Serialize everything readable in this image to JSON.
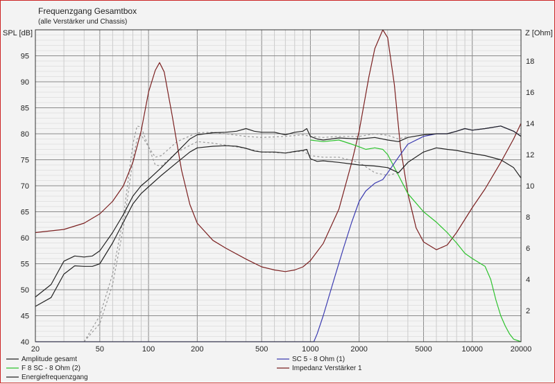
{
  "window": {
    "title": "Frequenzgang Gesamtbox"
  },
  "chart_data": {
    "type": "line",
    "title": "Frequenzgang Gesamtbox",
    "subtitle": "(alle Verstärker und Chassis)",
    "x_scale": "log",
    "xlim": [
      20,
      20000
    ],
    "x_ticks": [
      20,
      50,
      100,
      200,
      500,
      1000,
      2000,
      5000,
      10000,
      20000
    ],
    "y_left": {
      "label": "SPL [dB]",
      "ylim": [
        40,
        100
      ],
      "ticks": [
        40,
        45,
        50,
        55,
        60,
        65,
        70,
        75,
        80,
        85,
        90,
        95
      ]
    },
    "y_right": {
      "label": "Z [Ohm]",
      "ylim": [
        0,
        20
      ],
      "ticks": [
        2,
        4,
        6,
        8,
        10,
        12,
        14,
        16,
        18
      ]
    },
    "grid": true,
    "legend_position": "bottom",
    "legend": [
      {
        "label": "Amplitude gesamt",
        "color": "#222222"
      },
      {
        "label": "SC 5 - 8 Ohm (1)",
        "color": "#3a3ab0"
      },
      {
        "label": "F 8 SC - 8 Ohm (2)",
        "color": "#2cc22c"
      },
      {
        "label": "Impedanz Verstärker 1",
        "color": "#7a1f1f"
      },
      {
        "label": "Energiefrequenzgang",
        "color": "#222222"
      }
    ],
    "series": [
      {
        "name": "Amplitude gesamt",
        "axis": "left",
        "color": "#222222",
        "dash": "",
        "points": [
          [
            20,
            48.6
          ],
          [
            25,
            51
          ],
          [
            30,
            55.5
          ],
          [
            35,
            56.5
          ],
          [
            40,
            56.3
          ],
          [
            45,
            56.5
          ],
          [
            50,
            57.5
          ],
          [
            60,
            61
          ],
          [
            70,
            64.5
          ],
          [
            80,
            68
          ],
          [
            90,
            70
          ],
          [
            100,
            71.2
          ],
          [
            120,
            73.5
          ],
          [
            150,
            76.5
          ],
          [
            180,
            79
          ],
          [
            200,
            79.8
          ],
          [
            250,
            80.2
          ],
          [
            300,
            80.3
          ],
          [
            350,
            80.5
          ],
          [
            400,
            81
          ],
          [
            450,
            80.5
          ],
          [
            500,
            80.3
          ],
          [
            600,
            80.3
          ],
          [
            700,
            79.8
          ],
          [
            800,
            80.3
          ],
          [
            900,
            80.5
          ],
          [
            950,
            81
          ],
          [
            1000,
            79.5
          ],
          [
            1100,
            79
          ],
          [
            1200,
            78.8
          ],
          [
            1500,
            79.2
          ],
          [
            2000,
            79
          ],
          [
            2500,
            79.3
          ],
          [
            3000,
            78.8
          ],
          [
            3500,
            78.5
          ],
          [
            4000,
            79.3
          ],
          [
            5000,
            79.8
          ],
          [
            6000,
            80
          ],
          [
            7000,
            80
          ],
          [
            8000,
            80.5
          ],
          [
            9000,
            81
          ],
          [
            10000,
            80.7
          ],
          [
            12000,
            81
          ],
          [
            15000,
            81.5
          ],
          [
            18000,
            80.5
          ],
          [
            20000,
            79.5
          ]
        ]
      },
      {
        "name": "Energiefrequenzgang",
        "axis": "left",
        "color": "#222222",
        "dash": "",
        "points": [
          [
            20,
            46.8
          ],
          [
            25,
            48.5
          ],
          [
            30,
            53
          ],
          [
            35,
            54.6
          ],
          [
            40,
            54.5
          ],
          [
            45,
            54.5
          ],
          [
            50,
            55
          ],
          [
            60,
            59
          ],
          [
            70,
            63
          ],
          [
            80,
            66.5
          ],
          [
            90,
            68.5
          ],
          [
            100,
            69.8
          ],
          [
            120,
            72
          ],
          [
            150,
            74.5
          ],
          [
            180,
            76.5
          ],
          [
            200,
            77.3
          ],
          [
            250,
            77.6
          ],
          [
            300,
            77.7
          ],
          [
            350,
            77.6
          ],
          [
            400,
            77.2
          ],
          [
            450,
            76.7
          ],
          [
            500,
            76.5
          ],
          [
            600,
            76.5
          ],
          [
            700,
            76.3
          ],
          [
            800,
            76.6
          ],
          [
            900,
            76.8
          ],
          [
            950,
            77
          ],
          [
            1000,
            75.2
          ],
          [
            1100,
            74.7
          ],
          [
            1200,
            74.8
          ],
          [
            1500,
            74.5
          ],
          [
            2000,
            74
          ],
          [
            2500,
            73.8
          ],
          [
            3000,
            73.5
          ],
          [
            3500,
            72.5
          ],
          [
            4000,
            74.5
          ],
          [
            5000,
            76.5
          ],
          [
            6000,
            77.3
          ],
          [
            7000,
            77
          ],
          [
            8000,
            76.8
          ],
          [
            10000,
            76.2
          ],
          [
            12000,
            75.8
          ],
          [
            15000,
            75
          ],
          [
            18000,
            73.5
          ],
          [
            20000,
            71.5
          ]
        ]
      },
      {
        "name": "SC 5 - 8 Ohm (1)",
        "axis": "left",
        "color": "#3a3ab0",
        "dash": "",
        "points": [
          [
            20,
            40
          ],
          [
            1050,
            40
          ],
          [
            1100,
            41.5
          ],
          [
            1200,
            45
          ],
          [
            1400,
            52
          ],
          [
            1600,
            58
          ],
          [
            1800,
            63
          ],
          [
            2000,
            67
          ],
          [
            2200,
            69
          ],
          [
            2500,
            70.5
          ],
          [
            2800,
            71.2
          ],
          [
            3000,
            72.5
          ],
          [
            3500,
            75.5
          ],
          [
            4000,
            78
          ],
          [
            5000,
            79.5
          ],
          [
            6000,
            80
          ],
          [
            7000,
            80
          ],
          [
            8000,
            80.5
          ],
          [
            9000,
            81
          ],
          [
            10000,
            80.7
          ],
          [
            12000,
            81
          ],
          [
            15000,
            81.5
          ],
          [
            18000,
            80.5
          ],
          [
            20000,
            79.5
          ]
        ]
      },
      {
        "name": "F 8 SC - 8 Ohm (2)",
        "axis": "left",
        "color": "#2cc22c",
        "dash": "",
        "points": [
          [
            1000,
            78.8
          ],
          [
            1200,
            78.5
          ],
          [
            1500,
            78.8
          ],
          [
            1800,
            78
          ],
          [
            2000,
            77.5
          ],
          [
            2200,
            77
          ],
          [
            2500,
            77.3
          ],
          [
            2800,
            77
          ],
          [
            3000,
            76
          ],
          [
            3500,
            72
          ],
          [
            4000,
            68.5
          ],
          [
            5000,
            65
          ],
          [
            6000,
            63
          ],
          [
            7000,
            61
          ],
          [
            8000,
            59
          ],
          [
            9000,
            57
          ],
          [
            10000,
            56
          ],
          [
            12000,
            54.5
          ],
          [
            13000,
            52
          ],
          [
            14000,
            48
          ],
          [
            15000,
            45
          ],
          [
            16000,
            43
          ],
          [
            17000,
            41.5
          ],
          [
            18000,
            40.5
          ],
          [
            20000,
            40
          ]
        ]
      },
      {
        "name": "Impedanz Verstärker 1",
        "axis": "right",
        "color": "#7a1f1f",
        "dash": "",
        "points": [
          [
            20,
            7
          ],
          [
            30,
            7.2
          ],
          [
            40,
            7.6
          ],
          [
            50,
            8.2
          ],
          [
            60,
            9
          ],
          [
            70,
            10
          ],
          [
            80,
            11.5
          ],
          [
            90,
            13.5
          ],
          [
            100,
            16
          ],
          [
            110,
            17.4
          ],
          [
            117,
            17.9
          ],
          [
            125,
            17.3
          ],
          [
            140,
            14.5
          ],
          [
            160,
            11
          ],
          [
            180,
            8.8
          ],
          [
            200,
            7.6
          ],
          [
            250,
            6.5
          ],
          [
            300,
            6
          ],
          [
            400,
            5.3
          ],
          [
            500,
            4.8
          ],
          [
            600,
            4.6
          ],
          [
            700,
            4.5
          ],
          [
            800,
            4.6
          ],
          [
            900,
            4.8
          ],
          [
            1000,
            5.2
          ],
          [
            1200,
            6.3
          ],
          [
            1500,
            8.5
          ],
          [
            1800,
            11.5
          ],
          [
            2000,
            13.5
          ],
          [
            2300,
            17
          ],
          [
            2500,
            18.8
          ],
          [
            2800,
            20
          ],
          [
            3000,
            19.5
          ],
          [
            3300,
            16.5
          ],
          [
            3600,
            12.5
          ],
          [
            4000,
            9.5
          ],
          [
            4500,
            7.3
          ],
          [
            5000,
            6.4
          ],
          [
            6000,
            5.9
          ],
          [
            7000,
            6.2
          ],
          [
            8000,
            7
          ],
          [
            10000,
            8.6
          ],
          [
            12000,
            9.8
          ],
          [
            15000,
            11.5
          ],
          [
            18000,
            13
          ],
          [
            20000,
            14
          ]
        ]
      },
      {
        "name": "",
        "axis": "left",
        "color": "#999999",
        "dash": "3,3",
        "points": [
          [
            40,
            40
          ],
          [
            50,
            45
          ],
          [
            60,
            53
          ],
          [
            70,
            64
          ],
          [
            80,
            78
          ],
          [
            85,
            81.5
          ],
          [
            90,
            81.3
          ],
          [
            100,
            77.5
          ],
          [
            110,
            75.5
          ],
          [
            120,
            75.8
          ],
          [
            150,
            78.5
          ],
          [
            200,
            80.2
          ],
          [
            250,
            80.3
          ],
          [
            300,
            80
          ],
          [
            400,
            79.5
          ],
          [
            500,
            79.3
          ],
          [
            700,
            79.5
          ],
          [
            900,
            79.8
          ],
          [
            1000,
            79.5
          ],
          [
            1200,
            79.3
          ],
          [
            1500,
            79.5
          ],
          [
            2000,
            79.5
          ],
          [
            2500,
            80
          ],
          [
            3000,
            79.7
          ],
          [
            3500,
            79
          ],
          [
            4000,
            79.5
          ]
        ]
      },
      {
        "name": "",
        "axis": "left",
        "color": "#999999",
        "dash": "3,3",
        "points": [
          [
            40,
            40
          ],
          [
            50,
            43.5
          ],
          [
            60,
            51
          ],
          [
            70,
            62
          ],
          [
            80,
            75
          ],
          [
            85,
            79
          ],
          [
            90,
            79.8
          ],
          [
            100,
            77.5
          ],
          [
            110,
            74
          ],
          [
            120,
            73.8
          ],
          [
            150,
            76.5
          ],
          [
            200,
            78.5
          ],
          [
            250,
            78.2
          ],
          [
            300,
            77.8
          ],
          [
            400,
            77.2
          ],
          [
            500,
            76.5
          ],
          [
            700,
            76.3
          ],
          [
            900,
            76.7
          ],
          [
            1000,
            75.8
          ],
          [
            1200,
            75.5
          ],
          [
            1500,
            75.5
          ],
          [
            2000,
            74.5
          ],
          [
            2500,
            72.5
          ],
          [
            3000,
            72
          ],
          [
            3500,
            72.5
          ],
          [
            4000,
            74.5
          ]
        ]
      }
    ]
  }
}
